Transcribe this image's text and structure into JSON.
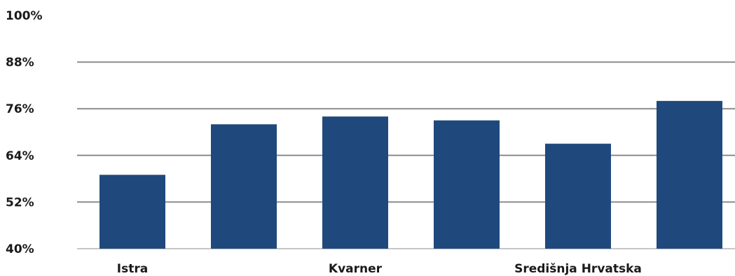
{
  "chart_data": {
    "type": "bar",
    "categories": [
      "Istra",
      "",
      "Kvarner",
      "",
      "Središnja Hrvatska",
      ""
    ],
    "series": [
      {
        "values": [
          59,
          72,
          74,
          73,
          67,
          78
        ]
      }
    ],
    "ylim": [
      40,
      100
    ],
    "yticks": [
      40,
      52,
      64,
      76,
      88,
      100
    ],
    "ytick_labels": [
      "40%",
      "52%",
      "64%",
      "76%",
      "88%",
      "100%"
    ],
    "grid": true,
    "legend": "none",
    "colors": {
      "bar": "#1f497d",
      "grid": "#8c8c8c",
      "text": "#1a1a1a"
    }
  }
}
